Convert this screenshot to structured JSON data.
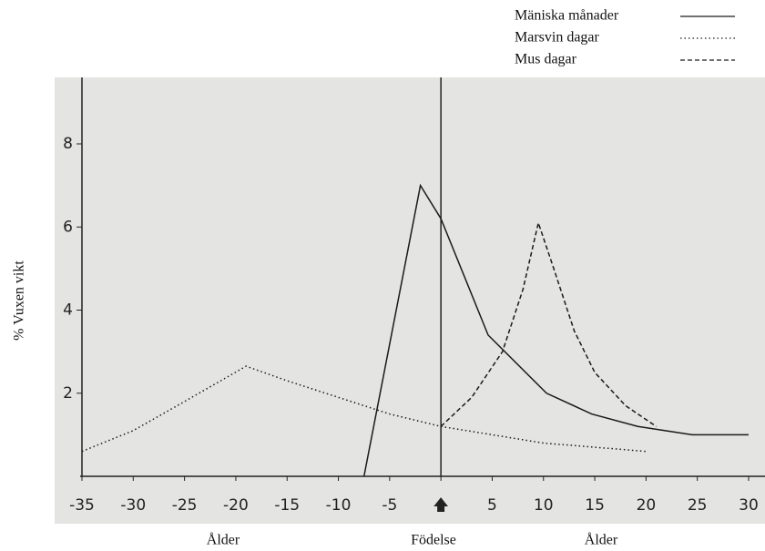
{
  "chart_data": {
    "type": "line",
    "y_label": "% Vuxen vikt",
    "annotations": [
      "Ålder",
      "Födelse",
      "Ålder"
    ],
    "legend": "top-right",
    "xlim": [
      -35,
      30
    ],
    "ylim": [
      0,
      9.6
    ],
    "xticks": [
      -35,
      -30,
      -25,
      -20,
      -15,
      -10,
      -5,
      {
        "value": 0,
        "label": "🡅"
      },
      5,
      10,
      15,
      20,
      25,
      30
    ],
    "yticks": [
      2,
      4,
      6,
      8
    ],
    "birth_line": 0,
    "series": [
      {
        "name": "Mäniska månader",
        "color": "#1a1a1a",
        "dash": "solid",
        "x": [
          -7.5,
          -2,
          0,
          4.6,
          10.3,
          14.7,
          19.2,
          24.5,
          30
        ],
        "values": [
          0,
          7.0,
          6.2,
          3.4,
          2.0,
          1.5,
          1.2,
          1.0,
          1.0
        ]
      },
      {
        "name": "Marsvin dagar",
        "color": "#1a1a1a",
        "dash": "dotted",
        "x": [
          -35,
          -30,
          -25,
          -19,
          -15,
          -10,
          -5,
          0,
          5,
          10,
          15,
          20
        ],
        "values": [
          0.6,
          1.1,
          1.8,
          2.65,
          2.3,
          1.9,
          1.5,
          1.2,
          1.0,
          0.8,
          0.7,
          0.6
        ]
      },
      {
        "name": "Mus dagar",
        "color": "#1a1a1a",
        "dash": "dashed",
        "x": [
          0,
          3,
          6,
          8,
          9.5,
          11,
          13,
          15,
          18,
          21
        ],
        "values": [
          1.2,
          1.9,
          3.0,
          4.5,
          6.1,
          5.0,
          3.5,
          2.5,
          1.7,
          1.2
        ]
      }
    ]
  }
}
